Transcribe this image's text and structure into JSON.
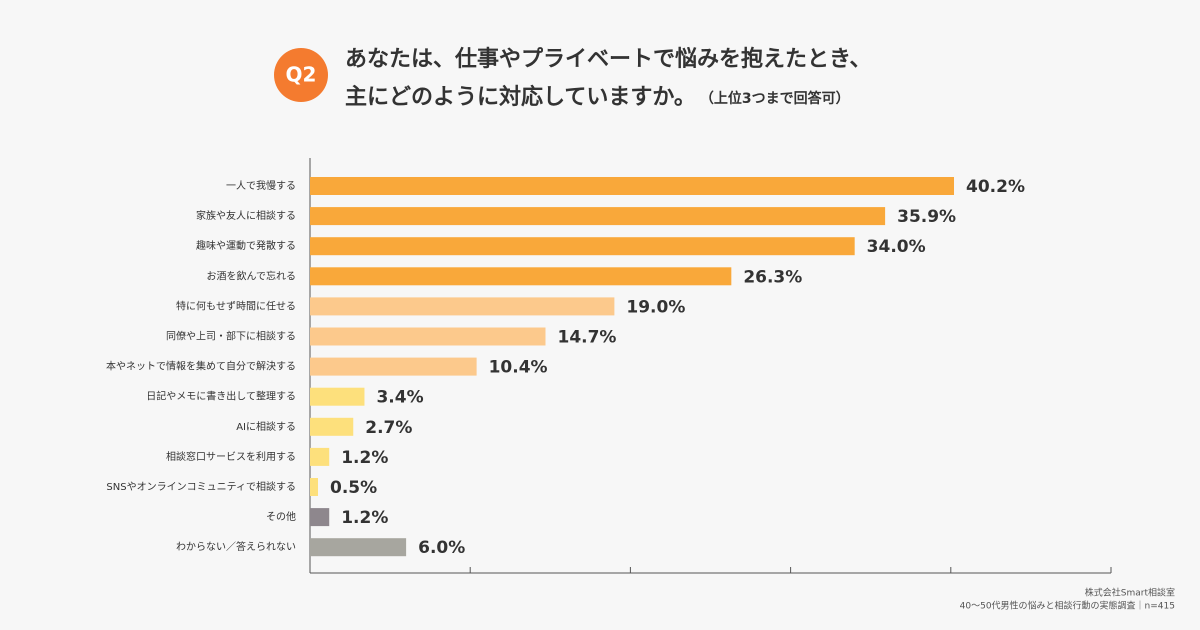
{
  "chart_data": {
    "type": "bar",
    "orientation": "horizontal",
    "badge": "Q2",
    "title": [
      "あなたは、仕事やプライベートで悩みを抱えたとき、",
      "主にどのように対応していますか。"
    ],
    "note": "（上位3つまで回答可）",
    "categories": [
      "一人で我慢する",
      "家族や友人に相談する",
      "趣味や運動で発散する",
      "お酒を飲んで忘れる",
      "特に何もせず時間に任せる",
      "同僚や上司・部下に相談する",
      "本やネットで情報を集めて自分で解決する",
      "日記やメモに書き出して整理する",
      "AIに相談する",
      "相談窓口サービスを利用する",
      "SNSやオンラインコミュニティで相談する",
      "その他",
      "わからない／答えられない"
    ],
    "values": [
      40.2,
      35.9,
      34.0,
      26.3,
      19.0,
      14.7,
      10.4,
      3.4,
      2.7,
      1.2,
      0.5,
      1.2,
      6.0
    ],
    "value_labels": [
      "40.2%",
      "35.9%",
      "34.0%",
      "26.3%",
      "19.0%",
      "14.7%",
      "10.4%",
      "3.4%",
      "2.7%",
      "1.2%",
      "0.5%",
      "1.2%",
      "6.0%"
    ],
    "colors": [
      "#f9a83a",
      "#f9a83a",
      "#f9a83a",
      "#f9a83a",
      "#fcc98c",
      "#fcc98c",
      "#fcc98c",
      "#fde07c",
      "#fde07c",
      "#fde07c",
      "#fde07c",
      "#8e878d",
      "#a7a69f"
    ],
    "xlim": [
      0,
      50
    ],
    "xticks": [
      10,
      20,
      30,
      40,
      50
    ],
    "source": [
      "株式会社Smart相談室",
      "40〜50代男性の悩みと相談行動の実態調査｜n=415"
    ]
  }
}
